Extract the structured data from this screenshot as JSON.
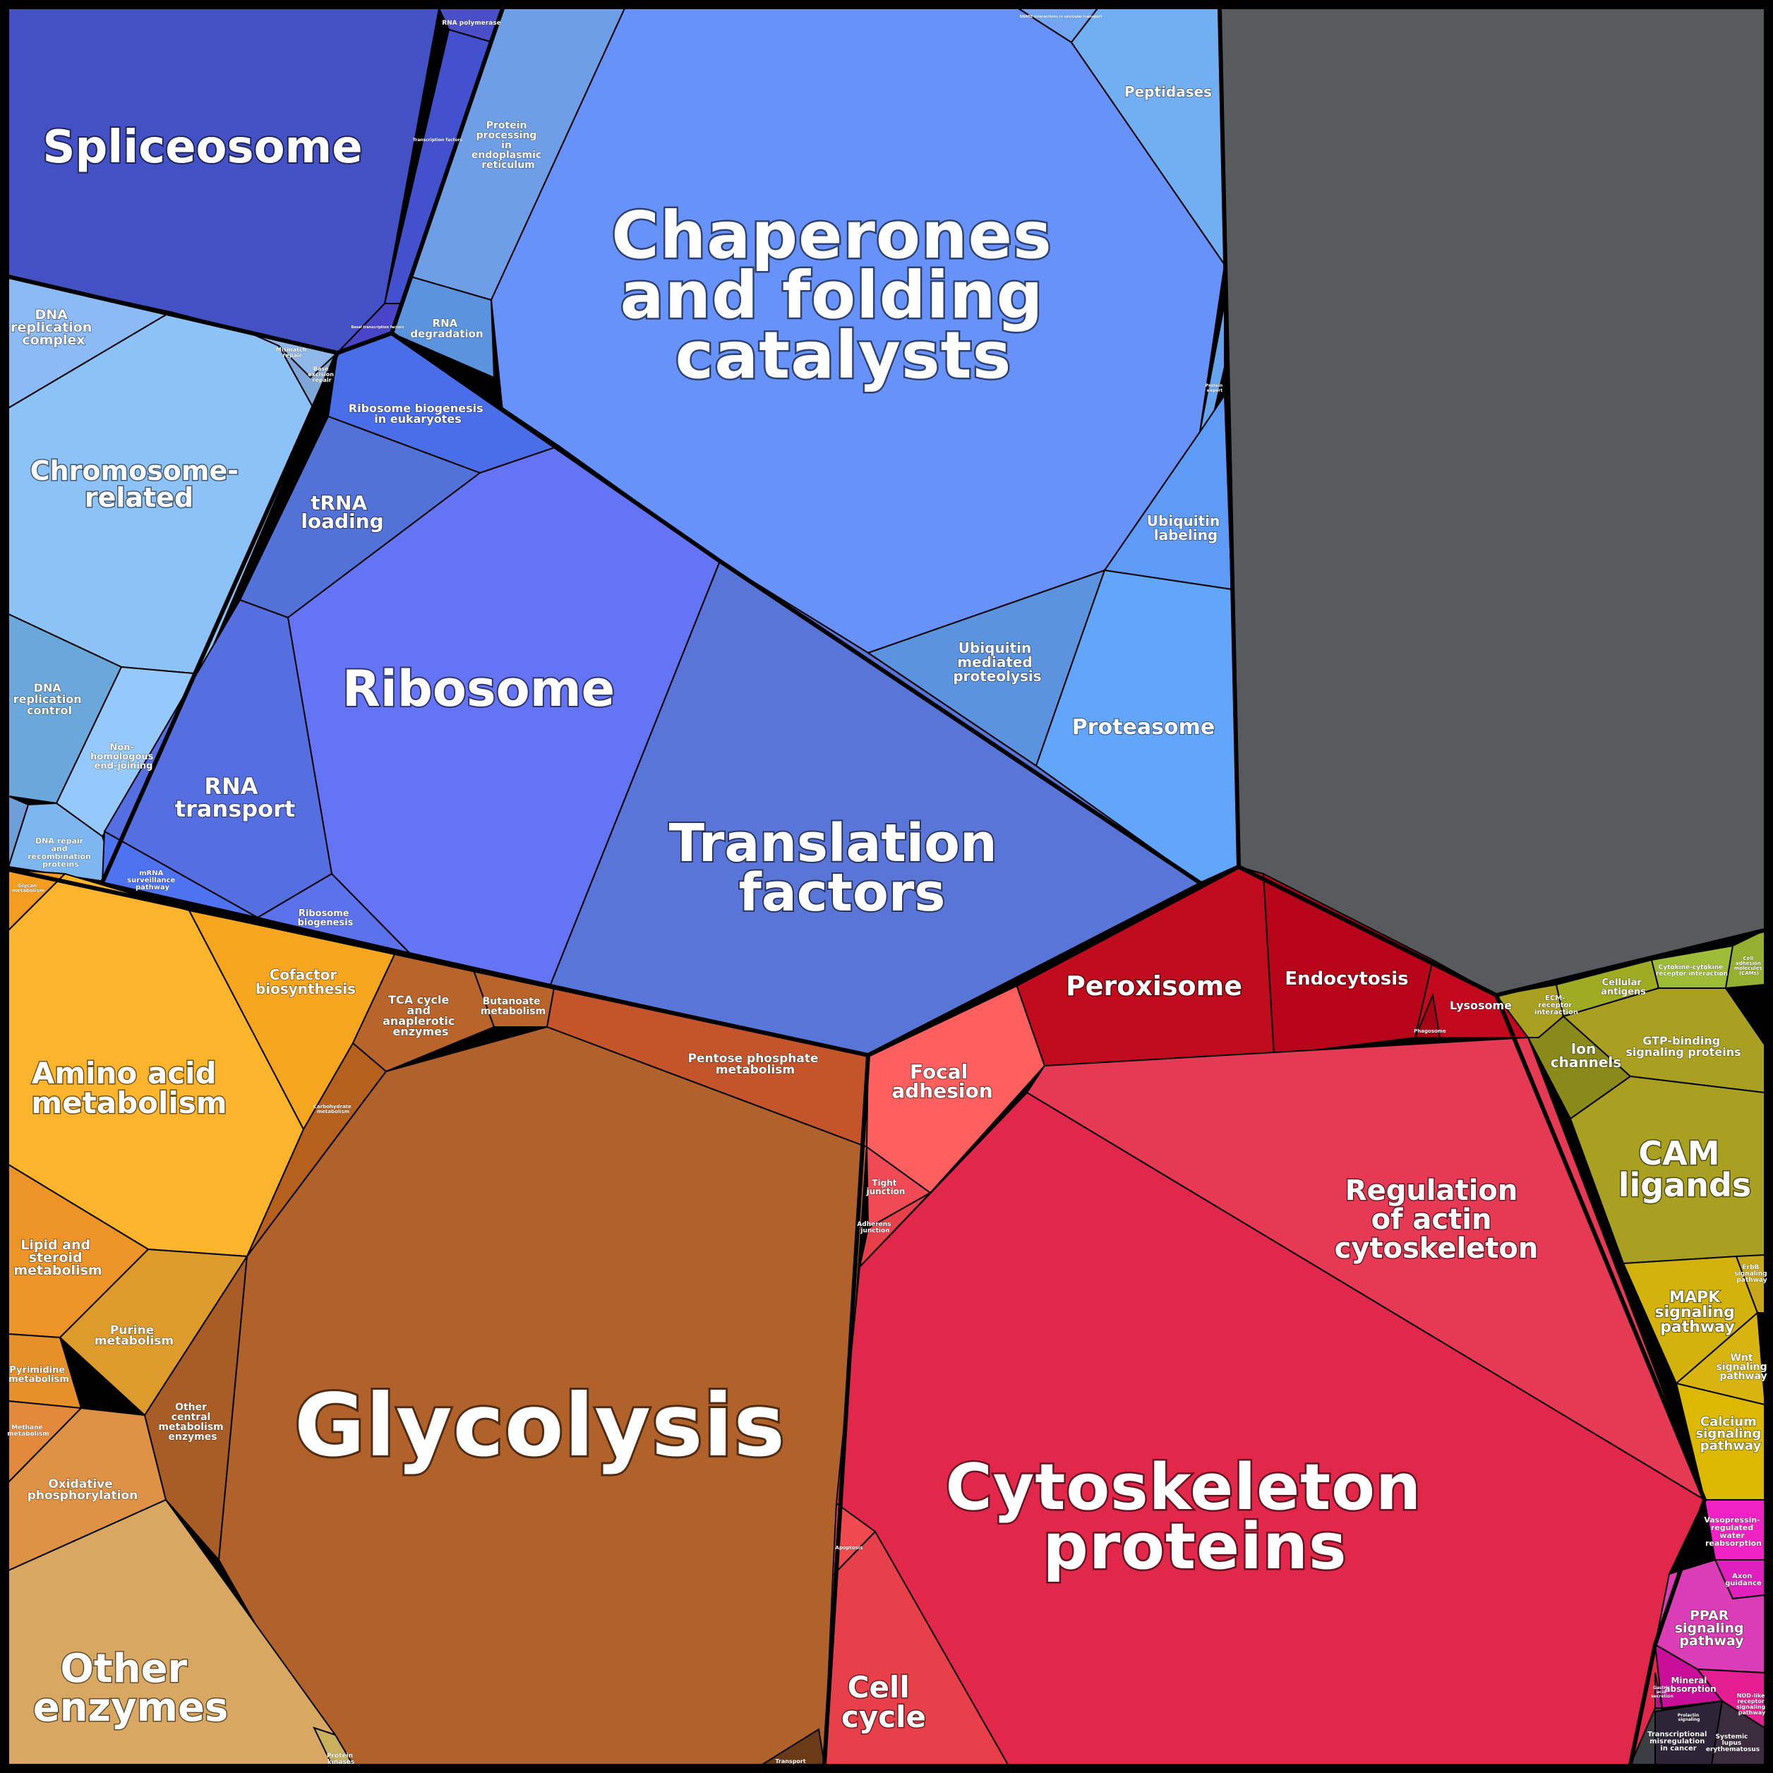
{
  "colors": {
    "genetic_info": [
      "#4451c4",
      "#4a5bd4",
      "#5d55c8",
      "#3d46b8"
    ],
    "replication_repair": [
      "#8cc2f5",
      "#7eb6ef",
      "#6aa8dc",
      "#95c8fb"
    ],
    "folding_degradation": [
      "#6792fa",
      "#6ea2e6",
      "#5c93df",
      "#62a6fb",
      "#73aef5"
    ],
    "translation": [
      "#5968d4",
      "#6474f5",
      "#4e73e5",
      "#4a6de8"
    ],
    "unclassified": "#575b5e",
    "amino_acid": [
      "#fbb42c",
      "#f5a51e",
      "#f39c1f"
    ],
    "lipid": [
      "#ed9429",
      "#dc9b2a"
    ],
    "carbohydrate": [
      "#b0622a",
      "#c0672a",
      "#c45429",
      "#a85c26"
    ],
    "other_enzymes": "#d8a862",
    "oxidative": "#de9246",
    "cellular_processes": [
      "#e2284a",
      "#e63a54",
      "#ff605f",
      "#e8404a",
      "#c10b1e",
      "#b80519"
    ],
    "membrane_transport": [
      "#a9a022",
      "#8a8a1a",
      "#92a532"
    ],
    "signaling": [
      "#d3b20c",
      "#c8a818",
      "#dcb800"
    ],
    "organismal": [
      "#f022c3",
      "#db3db7",
      "#e41e90",
      "#c90e9a"
    ],
    "disease": [
      "#2e2438",
      "#3c2d3e"
    ]
  },
  "labels": {
    "spliceosome": "Spliceosome",
    "rna_polymerase": "RNA polymerase",
    "transcription_factors": "Transcription factors",
    "basal_transcription": "Basal transcription factors",
    "protein_processing_er": [
      "Protein",
      "processing",
      "in",
      "endoplasmic",
      "reticulum"
    ],
    "chaperones": [
      "Chaperones",
      "and folding",
      "catalysts"
    ],
    "peptidases": "Peptidases",
    "snare": "SNARE interactions in vesicular transport",
    "protein_export": [
      "Protein",
      "export"
    ],
    "rna_degradation": [
      "RNA",
      "degradation"
    ],
    "ubiquitin_labeling": [
      "Ubiquitin",
      "labeling"
    ],
    "ubiquitin_mediated": [
      "Ubiquitin",
      "mediated",
      "proteolysis"
    ],
    "proteasome": "Proteasome",
    "dna_replication_complex": [
      "DNA",
      "replication",
      "complex"
    ],
    "mismatch_repair": [
      "Mismatch",
      "repair"
    ],
    "base_excision": [
      "Base",
      "excision",
      "repair"
    ],
    "chromosome": [
      "Chromosome-",
      "related"
    ],
    "ribosome_biogenesis_euk": [
      "Ribosome biogenesis",
      "in eukaryotes"
    ],
    "trna_loading": [
      "tRNA",
      "loading"
    ],
    "ribosome": "Ribosome",
    "translation_factors": [
      "Translation",
      "factors"
    ],
    "dna_replication_control": [
      "DNA",
      "replication",
      "control"
    ],
    "nonhomologous": [
      "Non-",
      "homologous",
      "end-joining"
    ],
    "rna_transport": [
      "RNA",
      "transport"
    ],
    "dna_repair": [
      "DNA repair",
      "and",
      "recombination",
      "proteins"
    ],
    "mrna_surveillance": [
      "mRNA",
      "surveillance",
      "pathway"
    ],
    "ribosome_biogenesis": [
      "Ribosome",
      "biogenesis"
    ],
    "glycan": [
      "Glycan",
      "metabolism"
    ],
    "amino_acid": [
      "Amino acid",
      "metabolism"
    ],
    "cofactor": [
      "Cofactor",
      "biosynthesis"
    ],
    "tca": [
      "TCA cycle",
      "and",
      "anaplerotic",
      "enzymes"
    ],
    "butanoate": [
      "Butanoate",
      "metabolism"
    ],
    "pentose": [
      "Pentose phosphate",
      "metabolism"
    ],
    "carbohydrate_small": [
      "Carbohydrate",
      "metabolism"
    ],
    "lipid": [
      "Lipid and",
      "steroid",
      "metabolism"
    ],
    "purine": [
      "Purine",
      "metabolism"
    ],
    "pyrimidine": [
      "Pyrimidine",
      "metabolism"
    ],
    "methane": [
      "Methane",
      "metabolism"
    ],
    "oxidative": [
      "Oxidative",
      "phosphorylation"
    ],
    "other_central": [
      "Other",
      "central",
      "metabolism",
      "enzymes"
    ],
    "glycolysis": "Glycolysis",
    "other_enzymes": [
      "Other",
      "enzymes"
    ],
    "protein_kinases": [
      "Protein",
      "kinases"
    ],
    "transport_small": "Transport",
    "focal_adhesion": [
      "Focal",
      "adhesion"
    ],
    "tight_junction": [
      "Tight",
      "junction"
    ],
    "adherens": [
      "Adherens",
      "junction"
    ],
    "peroxisome": "Peroxisome",
    "endocytosis": "Endocytosis",
    "lysosome": "Lysosome",
    "phagosome": "Phagosome",
    "regulation_actin": [
      "Regulation",
      "of actin",
      "cytoskeleton"
    ],
    "cytoskeleton": [
      "Cytoskeleton",
      "proteins"
    ],
    "apoptosis": "Apoptosis",
    "cell_cycle": [
      "Cell",
      "cycle"
    ],
    "ecm": [
      "ECM-",
      "receptor",
      "interaction"
    ],
    "cellular_antigens": [
      "Cellular",
      "antigens"
    ],
    "cytokine": [
      "Cytokine-cytokine",
      "receptor interaction"
    ],
    "cam_small": [
      "Cell",
      "adhesion",
      "molecules",
      "(CAMs)"
    ],
    "ion_channels": [
      "Ion",
      "channels"
    ],
    "gtp_binding": [
      "GTP-binding",
      "signaling proteins"
    ],
    "cam_ligands": [
      "CAM",
      "ligands"
    ],
    "mapk": [
      "MAPK",
      "signaling",
      "pathway"
    ],
    "erbb": [
      "ErbB",
      "signaling",
      "pathway"
    ],
    "wnt": [
      "Wnt",
      "signaling",
      "pathway"
    ],
    "calcium": [
      "Calcium",
      "signaling",
      "pathway"
    ],
    "vasopressin": [
      "Vasopressin-",
      "regulated",
      "water",
      "reabsorption"
    ],
    "axon": [
      "Axon",
      "guidance"
    ],
    "ppar": [
      "PPAR",
      "signaling",
      "pathway"
    ],
    "mineral": [
      "Mineral",
      "absorption"
    ],
    "nod": [
      "NOD-like",
      "receptor",
      "signaling",
      "pathway"
    ],
    "gastric": [
      "Gastric",
      "acid",
      "secretion"
    ],
    "transcriptional_misreg": [
      "Transcriptional",
      "misregulation",
      "in cancer"
    ],
    "lupus": [
      "Systemic",
      "lupus",
      "erythematosus"
    ],
    "prolactin": [
      "Prolactin",
      "signaling"
    ]
  }
}
